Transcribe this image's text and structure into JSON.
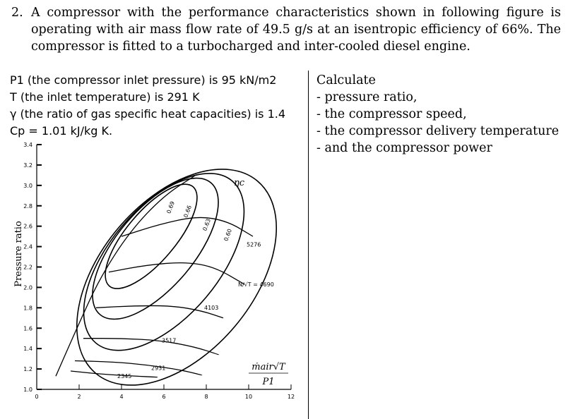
{
  "problem": {
    "number": "2.",
    "text": "A compressor with the performance characteristics shown in following figure is operating with air mass flow rate of 49.5 g/s at an isentropic efficiency of 66%. The compressor is fitted to a turbocharged and inter-cooled diesel engine."
  },
  "given": [
    "P1 (the compressor inlet pressure) is 95 kN/m2",
    "T (the inlet temperature) is 291 K",
    "γ (the ratio of gas specific heat capacities) is 1.4",
    "Cp = 1.01 kJ/kg K."
  ],
  "calculate": {
    "heading": "Calculate",
    "items": [
      "- pressure ratio,",
      "- the compressor speed,",
      "- the compressor delivery temperature",
      "- and the compressor power"
    ]
  },
  "chart_data": {
    "type": "compressor-map",
    "ylabel": "Pressure ratio",
    "xlabel": "ṁair√T / P1",
    "x_ticks": [
      "0",
      "2",
      "4",
      "6",
      "8",
      "10",
      "12"
    ],
    "y_ticks": [
      "1.0",
      "1.2",
      "1.4",
      "1.6",
      "1.8",
      "2.0",
      "2.2",
      "2.4",
      "2.6",
      "2.8",
      "3.0",
      "3.2",
      "3.4"
    ],
    "xlim": [
      0,
      12
    ],
    "ylim": [
      1.0,
      3.4
    ],
    "efficiency_symbol": "ηc",
    "efficiency_islands": [
      {
        "label": "0.69"
      },
      {
        "label": "0.66"
      },
      {
        "label": "0.63"
      },
      {
        "label": "0.60"
      }
    ],
    "speed_lines": [
      {
        "label": "2345",
        "points": [
          [
            1.6,
            1.18
          ],
          [
            3.0,
            1.15
          ],
          [
            4.6,
            1.13
          ],
          [
            5.7,
            1.12
          ]
        ]
      },
      {
        "label": "2931",
        "points": [
          [
            1.8,
            1.28
          ],
          [
            3.6,
            1.27
          ],
          [
            5.2,
            1.24
          ],
          [
            6.8,
            1.19
          ],
          [
            7.8,
            1.14
          ]
        ]
      },
      {
        "label": "3517",
        "points": [
          [
            2.2,
            1.5
          ],
          [
            4.0,
            1.5
          ],
          [
            5.8,
            1.48
          ],
          [
            7.4,
            1.42
          ],
          [
            8.6,
            1.34
          ]
        ]
      },
      {
        "label": "4103",
        "points": [
          [
            2.8,
            1.8
          ],
          [
            4.6,
            1.82
          ],
          [
            6.4,
            1.82
          ],
          [
            7.8,
            1.77
          ],
          [
            8.8,
            1.7
          ]
        ]
      },
      {
        "label": "4690",
        "points": [
          [
            3.4,
            2.15
          ],
          [
            5.2,
            2.22
          ],
          [
            7.0,
            2.25
          ],
          [
            8.4,
            2.2
          ],
          [
            9.8,
            2.03
          ]
        ]
      },
      {
        "label": "5276",
        "points": [
          [
            4.0,
            2.5
          ],
          [
            5.8,
            2.62
          ],
          [
            7.6,
            2.7
          ],
          [
            9.0,
            2.65
          ],
          [
            10.2,
            2.5
          ]
        ]
      }
    ],
    "speed_parameter_label": "N/√T = 4690",
    "surge_line": [
      [
        0.9,
        1.13
      ],
      [
        2.0,
        1.65
      ],
      [
        3.0,
        2.1
      ],
      [
        4.4,
        2.55
      ],
      [
        6.0,
        2.9
      ],
      [
        7.5,
        3.1
      ]
    ]
  }
}
